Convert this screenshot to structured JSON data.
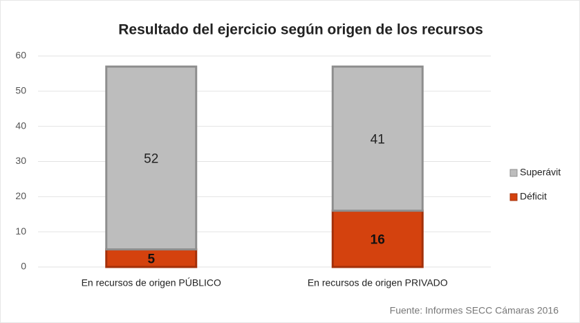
{
  "chart_data": {
    "type": "stacked_bar",
    "title": "Resultado del ejercicio según origen de los recursos",
    "categories": [
      "En recursos de origen PÚBLICO",
      "En recursos de origen PRIVADO"
    ],
    "series": [
      {
        "name": "Déficit",
        "color": "#d4420e",
        "values": [
          5,
          16
        ]
      },
      {
        "name": "Superávit",
        "color": "#bdbdbd",
        "values": [
          52,
          41
        ]
      }
    ],
    "ylim": [
      0,
      60
    ],
    "yticks": [
      0,
      10,
      20,
      30,
      40,
      50,
      60
    ],
    "grid": true,
    "legend": "right",
    "annotation": "Fuente: Informes SECC Cámaras 2016"
  }
}
